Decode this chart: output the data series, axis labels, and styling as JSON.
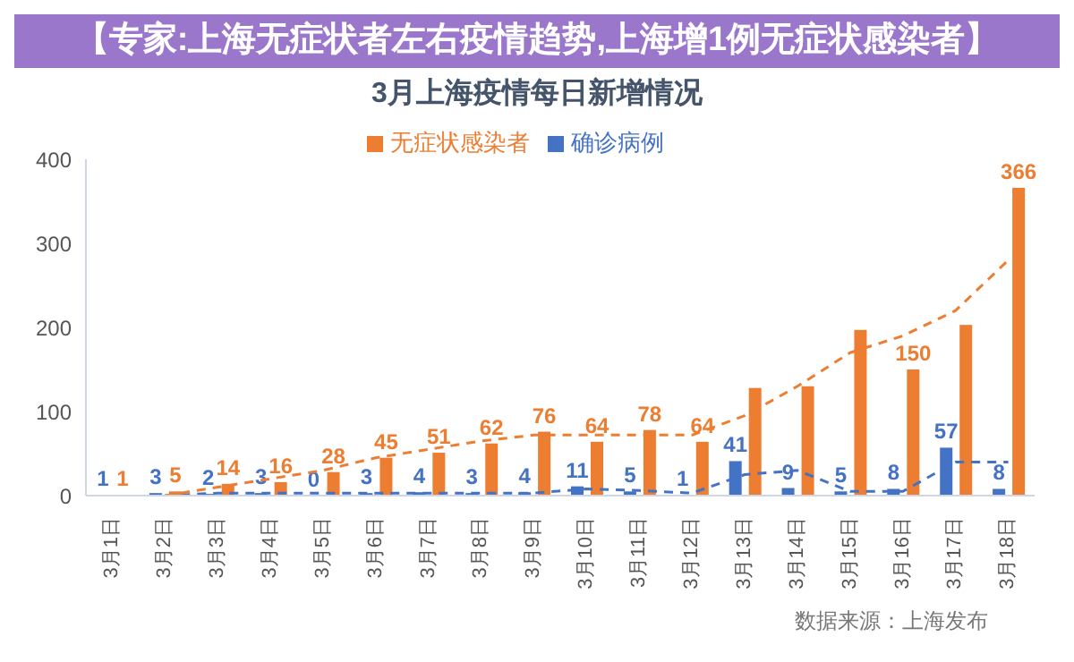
{
  "chart_data": {
    "type": "bar",
    "title": "3月上海疫情每日新增情况",
    "subtitle": "【专家:上海无症状者左右疫情趋势,上海增1例无症状感染者】",
    "categories": [
      "3月1日",
      "3月2日",
      "3月3日",
      "3月4日",
      "3月5日",
      "3月6日",
      "3月7日",
      "3月8日",
      "3月9日",
      "3月10日",
      "3月11日",
      "3月12日",
      "3月13日",
      "3月14日",
      "3月15日",
      "3月16日",
      "3月17日",
      "3月18日"
    ],
    "series": [
      {
        "name": "确诊病例",
        "color": "#4472c4",
        "values": [
          1,
          3,
          2,
          3,
          0,
          3,
          4,
          3,
          4,
          11,
          5,
          1,
          41,
          9,
          5,
          8,
          57,
          8
        ],
        "value_labels": [
          "1",
          "3",
          "2",
          "3",
          "0",
          "3",
          "4",
          "3",
          "4",
          "11",
          "5",
          "1",
          "41",
          "9",
          "5",
          "8",
          "57",
          "8"
        ]
      },
      {
        "name": "无症状感染者",
        "color": "#ed7d31",
        "values": [
          1,
          5,
          14,
          16,
          28,
          45,
          51,
          62,
          76,
          64,
          78,
          64,
          128,
          130,
          197,
          150,
          203,
          366
        ],
        "value_labels": [
          "1",
          "5",
          "14",
          "16",
          "28",
          "45",
          "51",
          "62",
          "76",
          "64",
          "78",
          "64",
          null,
          null,
          null,
          "150",
          null,
          "366"
        ]
      },
      {
        "type": "line",
        "color": "#4472c4",
        "line_style": "dashed",
        "marker": "none",
        "values": [
          null,
          0,
          3,
          3,
          3,
          3,
          3,
          3,
          3,
          8,
          6,
          3,
          25,
          30,
          5,
          5,
          40,
          40
        ]
      },
      {
        "type": "line",
        "color": "#ed7d31",
        "line_style": "dashed",
        "marker": "none",
        "values": [
          null,
          0,
          10,
          20,
          30,
          45,
          55,
          65,
          72,
          72,
          72,
          72,
          95,
          130,
          170,
          190,
          220,
          280
        ]
      }
    ],
    "ylim": [
      0,
      400
    ],
    "yticks": [
      0,
      100,
      200,
      300,
      400
    ],
    "grid": false,
    "legend": "top",
    "annotations": [
      "数据来源：上海发布"
    ]
  }
}
